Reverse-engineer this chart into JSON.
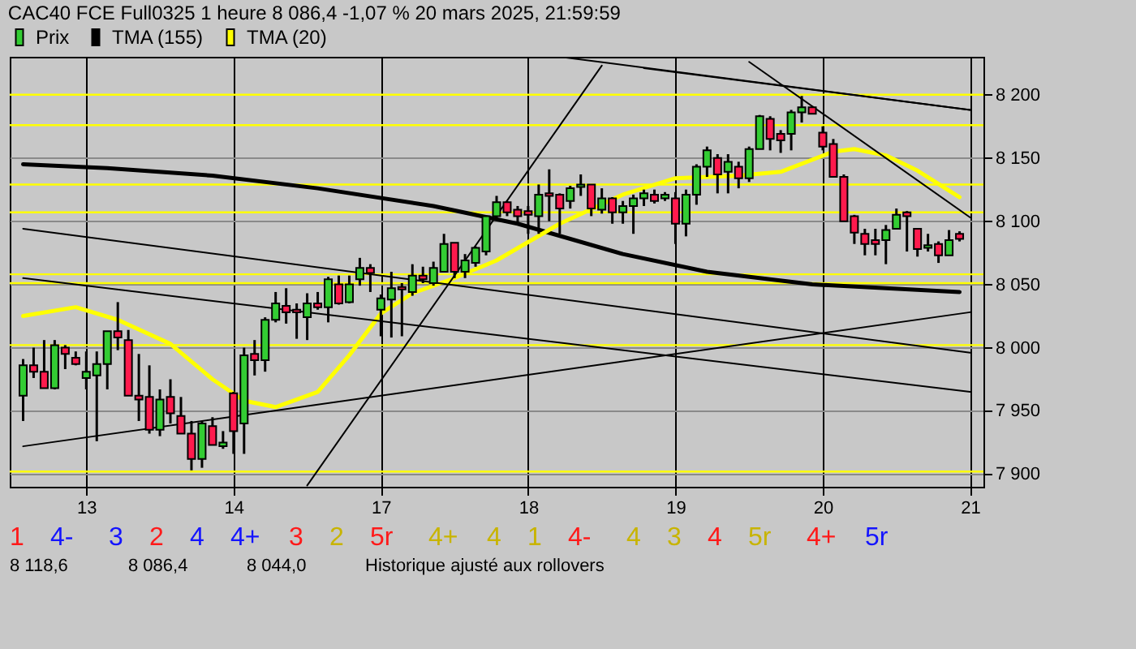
{
  "chart_data": {
    "type": "candlestick",
    "title": "CAC40 FCE Full0325 1 heure 8 086,4 -1,07 % 20 mars 2025, 21:59:59",
    "categories": [
      null,
      null,
      null,
      null,
      null,
      null,
      "13",
      null,
      null,
      null,
      null,
      null,
      null,
      null,
      null,
      null,
      null,
      null,
      null,
      null,
      "14",
      null,
      null,
      null,
      null,
      null,
      null,
      null,
      null,
      null,
      null,
      null,
      null,
      null,
      "17",
      null,
      null,
      null,
      null,
      null,
      null,
      null,
      null,
      null,
      null,
      null,
      null,
      null,
      "18",
      null,
      null,
      null,
      null,
      null,
      null,
      null,
      null,
      null,
      null,
      null,
      null,
      null,
      "19",
      null,
      null,
      null,
      null,
      null,
      null,
      null,
      null,
      null,
      null,
      null,
      null,
      null,
      "20",
      null,
      null,
      null,
      null,
      null,
      null,
      null,
      null,
      null,
      null,
      null,
      null,
      null,
      "21"
    ],
    "ylim": [
      7890,
      8230
    ],
    "yticks": [
      {
        "value": 7900,
        "label": "7 900"
      },
      {
        "value": 7950,
        "label": "7 950"
      },
      {
        "value": 8000,
        "label": "8 000"
      },
      {
        "value": 8050,
        "label": "8 050"
      },
      {
        "value": 8100,
        "label": "8 100"
      },
      {
        "value": 8150,
        "label": "8 150"
      },
      {
        "value": 8200,
        "label": "8 200"
      }
    ],
    "grid": true,
    "legend": "top left",
    "series": [
      {
        "name": "Prix",
        "type": "candlestick",
        "color": "#33cc33",
        "ohlc": [
          [
            7962,
            7991,
            7942,
            7986
          ],
          [
            7986,
            8000,
            7976,
            7981
          ],
          [
            7981,
            8006,
            7968,
            7968
          ],
          [
            7968,
            8006,
            7967,
            8002
          ],
          [
            8000,
            8002,
            7983,
            7995
          ],
          [
            7992,
            7997,
            7986,
            7987
          ],
          [
            7976,
            7997,
            7967,
            7981
          ],
          [
            7978,
            7997,
            7926,
            7987
          ],
          [
            7987,
            8013,
            7967,
            8013
          ],
          [
            8013,
            8036,
            7998,
            8008
          ],
          [
            8006,
            8014,
            7962,
            7962
          ],
          [
            7962,
            7995,
            7942,
            7959
          ],
          [
            7961,
            7986,
            7932,
            7935
          ],
          [
            7935,
            7967,
            7930,
            7959
          ],
          [
            7961,
            7975,
            7940,
            7948
          ],
          [
            7946,
            7961,
            7932,
            7932
          ],
          [
            7932,
            7942,
            7903,
            7912
          ],
          [
            7912,
            7942,
            7905,
            7940
          ],
          [
            7938,
            7945,
            7923,
            7923
          ],
          [
            7922,
            7934,
            7920,
            7925
          ],
          [
            7964,
            7965,
            7916,
            7934
          ],
          [
            7940,
            8000,
            7916,
            7994
          ],
          [
            7995,
            8006,
            7978,
            7990
          ],
          [
            7990,
            8024,
            7981,
            8022
          ],
          [
            8022,
            8044,
            8020,
            8035
          ],
          [
            8033,
            8047,
            8019,
            8028
          ],
          [
            8030,
            8035,
            8007,
            8028
          ],
          [
            8024,
            8043,
            8006,
            8035
          ],
          [
            8035,
            8044,
            8030,
            8032
          ],
          [
            8032,
            8056,
            8020,
            8054
          ],
          [
            8050,
            8057,
            8034,
            8035
          ],
          [
            8036,
            8057,
            8035,
            8050
          ],
          [
            8054,
            8071,
            8049,
            8063
          ],
          [
            8063,
            8066,
            8044,
            8059
          ],
          [
            8030,
            8042,
            8009,
            8039
          ],
          [
            8038,
            8060,
            8008,
            8047
          ],
          [
            8048,
            8051,
            8009,
            8046
          ],
          [
            8044,
            8066,
            8041,
            8057
          ],
          [
            8057,
            8064,
            8051,
            8054
          ],
          [
            8051,
            8068,
            8049,
            8063
          ],
          [
            8060,
            8090,
            8060,
            8082
          ],
          [
            8083,
            8083,
            8055,
            8060
          ],
          [
            8060,
            8074,
            8055,
            8069
          ],
          [
            8067,
            8080,
            8064,
            8079
          ],
          [
            8076,
            8104,
            8073,
            8104
          ],
          [
            8104,
            8120,
            8103,
            8115
          ],
          [
            8115,
            8116,
            8104,
            8107
          ],
          [
            8109,
            8112,
            8098,
            8104
          ],
          [
            8108,
            8112,
            8090,
            8105
          ],
          [
            8104,
            8129,
            8090,
            8121
          ],
          [
            8122,
            8141,
            8100,
            8120
          ],
          [
            8121,
            8122,
            8090,
            8110
          ],
          [
            8116,
            8128,
            8110,
            8126
          ],
          [
            8127,
            8137,
            8120,
            8129
          ],
          [
            8129,
            8129,
            8104,
            8110
          ],
          [
            8109,
            8126,
            8106,
            8118
          ],
          [
            8118,
            8119,
            8098,
            8107
          ],
          [
            8107,
            8116,
            8098,
            8112
          ],
          [
            8112,
            8121,
            8090,
            8118
          ],
          [
            8118,
            8125,
            8112,
            8122
          ],
          [
            8121,
            8125,
            8114,
            8116
          ],
          [
            8118,
            8123,
            8116,
            8121
          ],
          [
            8118,
            8123,
            8082,
            8098
          ],
          [
            8098,
            8125,
            8088,
            8121
          ],
          [
            8121,
            8145,
            8113,
            8143
          ],
          [
            8143,
            8159,
            8135,
            8156
          ],
          [
            8150,
            8153,
            8122,
            8137
          ],
          [
            8139,
            8153,
            8122,
            8147
          ],
          [
            8143,
            8147,
            8126,
            8134
          ],
          [
            8134,
            8159,
            8131,
            8157
          ],
          [
            8157,
            8184,
            8157,
            8183
          ],
          [
            8181,
            8183,
            8156,
            8165
          ],
          [
            8169,
            8172,
            8154,
            8164
          ],
          [
            8169,
            8188,
            8156,
            8186
          ],
          [
            8186,
            8199,
            8178,
            8190
          ],
          [
            8190,
            8191,
            8185,
            8185
          ],
          [
            8170,
            8175,
            8156,
            8159
          ],
          [
            8161,
            8165,
            8135,
            8135
          ],
          [
            8135,
            8137,
            8100,
            8100
          ],
          [
            8104,
            8105,
            8082,
            8091
          ],
          [
            8090,
            8094,
            8073,
            8082
          ],
          [
            8085,
            8094,
            8073,
            8082
          ],
          [
            8085,
            8097,
            8066,
            8093
          ],
          [
            8094,
            8110,
            8094,
            8105
          ],
          [
            8107,
            8108,
            8076,
            8104
          ],
          [
            8094,
            8094,
            8072,
            8078
          ],
          [
            8079,
            8090,
            8076,
            8081
          ],
          [
            8082,
            8084,
            8067,
            8073
          ],
          [
            8073,
            8093,
            8073,
            8085
          ],
          [
            8090,
            8092,
            8084,
            8086
          ],
          null
        ],
        "colors": [
          "#33cc33",
          "#ff1a4d",
          "#ff1a4d",
          "#33cc33",
          "#ff1a4d",
          "#ff1a4d",
          "#33cc33",
          "#33cc33",
          "#33cc33",
          "#ff1a4d",
          "#ff1a4d",
          "#ff1a4d",
          "#ff1a4d",
          "#33cc33",
          "#ff1a4d",
          "#ff1a4d",
          "#ff1a4d",
          "#33cc33",
          "#ff1a4d",
          "#33cc33",
          "#ff1a4d",
          "#33cc33",
          "#ff1a4d",
          "#33cc33",
          "#33cc33",
          "#ff1a4d",
          "#ff1a4d",
          "#33cc33",
          "#ff1a4d",
          "#33cc33",
          "#ff1a4d",
          "#33cc33",
          "#33cc33",
          "#ff1a4d",
          "#33cc33",
          "#33cc33",
          "#ff1a4d",
          "#33cc33",
          "#ff1a4d",
          "#33cc33",
          "#33cc33",
          "#ff1a4d",
          "#33cc33",
          "#33cc33",
          "#33cc33",
          "#33cc33",
          "#ff1a4d",
          "#ff1a4d",
          "#ff1a4d",
          "#33cc33",
          "#ff1a4d",
          "#ff1a4d",
          "#33cc33",
          "#33cc33",
          "#ff1a4d",
          "#33cc33",
          "#ff1a4d",
          "#33cc33",
          "#33cc33",
          "#33cc33",
          "#ff1a4d",
          "#33cc33",
          "#ff1a4d",
          "#33cc33",
          "#33cc33",
          "#33cc33",
          "#ff1a4d",
          "#33cc33",
          "#ff1a4d",
          "#33cc33",
          "#33cc33",
          "#ff1a4d",
          "#ff1a4d",
          "#33cc33",
          "#33cc33",
          "#ff1a4d",
          "#ff1a4d",
          "#ff1a4d",
          "#ff1a4d",
          "#ff1a4d",
          "#ff1a4d",
          "#ff1a4d",
          "#33cc33",
          "#33cc33",
          "#ff1a4d",
          "#ff1a4d",
          "#33cc33",
          "#ff1a4d",
          "#33cc33",
          "#ff1a4d",
          null
        ]
      },
      {
        "name": "TMA (155)",
        "type": "line",
        "color": "#000000",
        "values": [
          8145,
          null,
          null,
          null,
          null,
          null,
          null,
          null,
          8142,
          null,
          null,
          null,
          null,
          null,
          null,
          null,
          null,
          null,
          8136,
          null,
          null,
          null,
          null,
          null,
          null,
          null,
          null,
          null,
          8126,
          null,
          null,
          null,
          null,
          null,
          null,
          null,
          null,
          null,
          null,
          8112,
          null,
          null,
          null,
          null,
          null,
          null,
          null,
          8098,
          null,
          null,
          null,
          null,
          null,
          null,
          null,
          null,
          null,
          8074,
          null,
          null,
          null,
          null,
          null,
          null,
          null,
          8060,
          null,
          null,
          null,
          null,
          null,
          null,
          null,
          null,
          null,
          8050,
          null,
          null,
          null,
          null,
          null,
          null,
          null,
          null,
          null,
          null,
          null,
          null,
          null,
          8044,
          null
        ]
      },
      {
        "name": "TMA (20)",
        "type": "line",
        "color": "#ffff00",
        "values": [
          8025,
          null,
          null,
          null,
          null,
          8032,
          null,
          null,
          null,
          8022,
          null,
          null,
          null,
          null,
          8003,
          null,
          null,
          null,
          7975,
          null,
          null,
          7958,
          null,
          null,
          7953,
          null,
          null,
          null,
          7965,
          null,
          null,
          7994,
          null,
          null,
          8027,
          null,
          null,
          8043,
          null,
          null,
          null,
          8055,
          null,
          null,
          null,
          8069,
          null,
          null,
          null,
          null,
          null,
          8098,
          null,
          null,
          null,
          null,
          null,
          8121,
          null,
          null,
          null,
          null,
          8134,
          null,
          null,
          null,
          null,
          null,
          8136,
          null,
          null,
          null,
          8139,
          null,
          null,
          null,
          null,
          8155,
          null,
          8157,
          null,
          null,
          8152,
          null,
          null,
          8140,
          null,
          null,
          null,
          8119,
          null
        ]
      },
      {
        "type": "line",
        "color": "#000000",
        "values": [
          8094,
          null,
          null,
          null,
          null,
          null,
          null,
          null,
          null,
          null,
          null,
          null,
          null,
          null,
          null,
          null,
          null,
          null,
          null,
          null,
          null,
          null,
          null,
          null,
          null,
          null,
          null,
          null,
          null,
          null,
          null,
          null,
          null,
          null,
          null,
          null,
          null,
          null,
          null,
          null,
          null,
          null,
          null,
          null,
          null,
          null,
          null,
          null,
          null,
          null,
          null,
          null,
          null,
          null,
          null,
          null,
          null,
          null,
          null,
          null,
          null,
          null,
          null,
          null,
          null,
          null,
          null,
          null,
          null,
          null,
          null,
          null,
          null,
          null,
          null,
          null,
          null,
          null,
          null,
          null,
          null,
          null,
          null,
          null,
          null,
          null,
          null,
          null,
          null,
          null,
          7996
        ]
      },
      {
        "type": "line",
        "color": "#000000",
        "values": [
          8055,
          null,
          null,
          null,
          null,
          null,
          null,
          null,
          null,
          null,
          null,
          null,
          null,
          null,
          null,
          null,
          null,
          null,
          null,
          null,
          null,
          null,
          null,
          null,
          null,
          null,
          null,
          null,
          null,
          null,
          null,
          null,
          null,
          null,
          null,
          null,
          null,
          null,
          null,
          null,
          null,
          null,
          null,
          null,
          null,
          null,
          null,
          null,
          null,
          null,
          null,
          null,
          null,
          null,
          null,
          null,
          null,
          null,
          null,
          null,
          null,
          null,
          null,
          null,
          null,
          null,
          null,
          null,
          null,
          null,
          null,
          null,
          null,
          null,
          null,
          null,
          null,
          null,
          null,
          null,
          null,
          null,
          null,
          null,
          null,
          null,
          null,
          null,
          null,
          null,
          7965
        ]
      },
      {
        "type": "line",
        "color": "#000000",
        "values": [
          7922,
          null,
          null,
          null,
          null,
          null,
          null,
          null,
          null,
          null,
          null,
          null,
          null,
          null,
          null,
          null,
          null,
          null,
          null,
          null,
          null,
          null,
          null,
          null,
          null,
          null,
          null,
          null,
          null,
          null,
          null,
          null,
          null,
          null,
          null,
          null,
          null,
          null,
          null,
          null,
          null,
          null,
          null,
          null,
          null,
          null,
          null,
          null,
          null,
          null,
          null,
          null,
          null,
          null,
          null,
          null,
          null,
          null,
          null,
          null,
          null,
          null,
          null,
          null,
          null,
          null,
          null,
          null,
          null,
          null,
          null,
          null,
          null,
          null,
          null,
          null,
          null,
          null,
          null,
          null,
          null,
          null,
          null,
          null,
          null,
          null,
          null,
          null,
          null,
          null,
          8028
        ]
      },
      {
        "type": "line",
        "color": "#000000",
        "values": [
          null,
          null,
          null,
          null,
          null,
          null,
          null,
          null,
          null,
          null,
          null,
          null,
          null,
          null,
          null,
          null,
          null,
          null,
          null,
          null,
          null,
          null,
          null,
          null,
          null,
          null,
          null,
          null,
          null,
          null,
          null,
          null,
          null,
          null,
          null,
          null,
          null,
          null,
          null,
          null,
          null,
          null,
          null,
          null,
          null,
          null,
          null,
          null,
          null,
          null,
          null,
          8230,
          null,
          null,
          null,
          null,
          null,
          null,
          null,
          null,
          null,
          null,
          null,
          null,
          null,
          null,
          null,
          null,
          null,
          null,
          null,
          null,
          null,
          null,
          null,
          null,
          null,
          null,
          null,
          null,
          null,
          null,
          null,
          null,
          null,
          null,
          null,
          null,
          null,
          null,
          8188
        ]
      },
      {
        "type": "line",
        "color": "#000000",
        "values": [
          null,
          null,
          null,
          null,
          null,
          null,
          null,
          null,
          null,
          null,
          null,
          null,
          null,
          null,
          null,
          null,
          null,
          null,
          null,
          null,
          null,
          null,
          null,
          null,
          null,
          null,
          null,
          null,
          null,
          null,
          null,
          null,
          null,
          null,
          null,
          null,
          null,
          null,
          null,
          null,
          null,
          null,
          null,
          null,
          null,
          null,
          null,
          null,
          null,
          null,
          null,
          null,
          null,
          null,
          null,
          null,
          null,
          null,
          null,
          8221,
          null,
          null,
          null,
          null,
          null,
          null,
          null,
          null,
          null,
          null,
          null,
          null,
          null,
          null,
          null,
          null,
          null,
          null,
          null,
          null,
          null,
          null,
          null,
          null,
          null,
          null,
          null,
          null,
          null,
          null,
          8188
        ]
      },
      {
        "type": "line",
        "color": "#000000",
        "values": [
          null,
          null,
          null,
          null,
          null,
          null,
          null,
          null,
          null,
          null,
          null,
          null,
          null,
          null,
          null,
          null,
          null,
          null,
          null,
          null,
          null,
          null,
          null,
          null,
          null,
          null,
          null,
          7891,
          null,
          null,
          null,
          null,
          null,
          null,
          null,
          null,
          null,
          null,
          null,
          null,
          null,
          null,
          null,
          null,
          null,
          null,
          null,
          null,
          null,
          null,
          null,
          null,
          null,
          null,
          null,
          8223,
          null,
          null,
          null,
          null,
          null,
          null,
          null,
          null,
          null,
          null,
          null,
          null,
          null,
          null,
          null,
          null,
          null,
          null,
          null,
          null,
          null,
          null,
          null,
          null,
          null,
          null,
          null,
          null,
          null,
          null,
          null,
          null,
          null,
          null,
          null
        ]
      },
      {
        "type": "line",
        "color": "#000000",
        "values": [
          null,
          null,
          null,
          null,
          null,
          null,
          null,
          null,
          null,
          null,
          null,
          null,
          null,
          null,
          null,
          null,
          null,
          null,
          null,
          null,
          null,
          null,
          null,
          null,
          null,
          null,
          null,
          null,
          null,
          null,
          null,
          null,
          null,
          null,
          null,
          null,
          null,
          null,
          null,
          null,
          null,
          null,
          null,
          null,
          null,
          null,
          null,
          null,
          null,
          null,
          null,
          null,
          null,
          null,
          null,
          null,
          null,
          null,
          null,
          null,
          null,
          null,
          null,
          null,
          null,
          null,
          null,
          null,
          null,
          8226,
          null,
          null,
          null,
          null,
          null,
          null,
          null,
          null,
          null,
          null,
          null,
          null,
          null,
          null,
          null,
          null,
          null,
          null,
          null,
          null,
          8103
        ]
      }
    ],
    "ref_lines": [
      {
        "axis": "y",
        "value": 8200,
        "color": "#ffff00"
      },
      {
        "axis": "y",
        "value": 8176,
        "color": "#ffff00"
      },
      {
        "axis": "y",
        "value": 8129,
        "color": "#ffff00"
      },
      {
        "axis": "y",
        "value": 8107,
        "color": "#ffff00"
      },
      {
        "axis": "y",
        "value": 8058,
        "color": "#ffff00"
      },
      {
        "axis": "y",
        "value": 8051,
        "color": "#ffff00"
      },
      {
        "axis": "y",
        "value": 8002,
        "color": "#ffff00"
      },
      {
        "axis": "y",
        "value": 7902,
        "color": "#ffff00"
      }
    ],
    "annotations": [
      "1",
      "4-",
      "3",
      "2",
      "4",
      "4+",
      "3",
      "2",
      "5r",
      "4+",
      "4",
      "1",
      "4-",
      "4",
      "3",
      "4",
      "5r",
      "4+",
      "5r",
      "8 118,6",
      "8 086,4",
      "8 044,0",
      "Historique ajusté aux rollovers"
    ]
  }
}
